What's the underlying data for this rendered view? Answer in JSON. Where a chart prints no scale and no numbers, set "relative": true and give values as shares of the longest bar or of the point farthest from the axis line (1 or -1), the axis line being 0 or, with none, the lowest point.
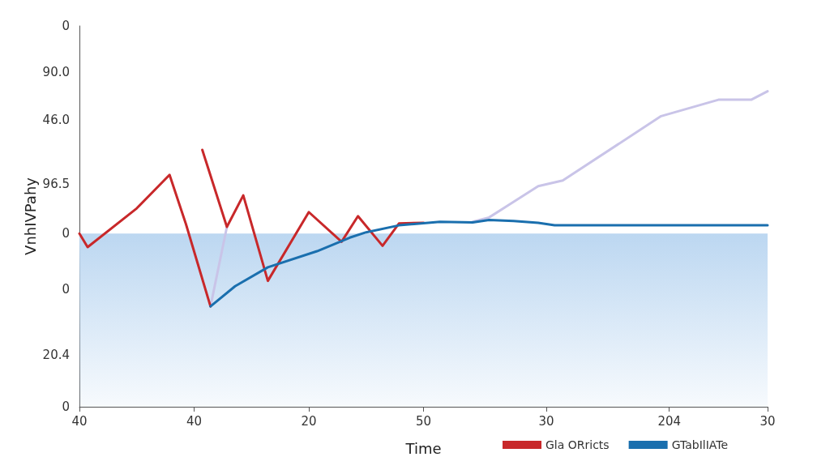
{
  "chart_data": {
    "type": "line",
    "relative": true,
    "xlabel": "Time",
    "ylabel": "VnhIVPahy",
    "annotations": [
      "0",
      "90.0",
      "46.0",
      "96.5",
      "0",
      "0",
      "20.4",
      "0"
    ],
    "categories": [
      "40",
      null,
      null,
      null,
      null,
      null,
      null,
      null,
      null,
      null,
      null,
      null,
      null,
      null,
      "40",
      null,
      null,
      null,
      null,
      null,
      null,
      null,
      null,
      null,
      null,
      null,
      null,
      null,
      "20",
      null,
      null,
      null,
      null,
      null,
      null,
      null,
      null,
      null,
      null,
      null,
      null,
      null,
      "50",
      null,
      null,
      null,
      null,
      null,
      null,
      null,
      null,
      null,
      null,
      null,
      null,
      null,
      null,
      "30",
      null,
      null,
      null,
      null,
      null,
      null,
      null,
      null,
      null,
      null,
      null,
      null,
      null,
      null,
      "204",
      null,
      null,
      null,
      null,
      null,
      null,
      null,
      null,
      null,
      null,
      null,
      "30"
    ],
    "legend": "bottom",
    "marker": "none",
    "line_style": "solid",
    "bands": [
      {
        "axis": "y",
        "from": 0,
        "to": 0.549,
        "color": "#bcd7f1"
      }
    ],
    "series": [
      {
        "color": "#c9c4e8",
        "values": [
          null,
          null,
          null,
          null,
          null,
          null,
          null,
          null,
          null,
          null,
          null,
          null,
          null,
          null,
          null,
          null,
          0.318,
          null,
          0.57,
          null,
          null,
          null,
          null,
          null,
          null,
          null,
          null,
          null,
          null,
          null,
          null,
          null,
          null,
          null,
          null,
          null,
          null,
          null,
          null,
          null,
          null,
          null,
          null,
          null,
          null,
          null,
          null,
          null,
          null,
          null,
          null,
          null,
          null,
          null,
          null,
          null,
          null,
          null,
          null,
          null,
          null,
          null,
          null,
          null,
          null,
          null,
          null,
          null,
          null,
          null,
          null,
          null,
          null,
          null,
          null,
          null,
          null,
          null,
          null,
          null,
          null,
          null,
          null,
          null,
          null
        ]
      },
      {
        "color": "#c9c4e8",
        "values": [
          null,
          null,
          null,
          null,
          null,
          null,
          null,
          null,
          null,
          null,
          null,
          null,
          null,
          null,
          null,
          null,
          null,
          null,
          null,
          null,
          null,
          null,
          null,
          null,
          null,
          null,
          null,
          null,
          null,
          null,
          null,
          null,
          null,
          null,
          null,
          null,
          null,
          null,
          null,
          null,
          null,
          null,
          null,
          null,
          null,
          null,
          null,
          null,
          0.586,
          null,
          0.6,
          null,
          null,
          null,
          null,
          null,
          0.699,
          null,
          null,
          0.717,
          null,
          null,
          null,
          null,
          null,
          null,
          null,
          null,
          null,
          null,
          null,
          0.921,
          null,
          null,
          null,
          null,
          null,
          null,
          0.973,
          null,
          null,
          null,
          0.973,
          null,
          1
        ]
      },
      {
        "name": "Gla ORricts",
        "color": "#c8282a",
        "values": [
          0.549,
          0.506,
          null,
          null,
          null,
          null,
          null,
          0.629,
          null,
          null,
          null,
          0.735,
          null,
          0.579,
          null,
          null,
          0.318,
          null,
          null,
          null,
          null,
          null,
          null,
          null,
          null,
          null,
          null,
          null,
          null,
          null,
          null,
          null,
          null,
          null,
          null,
          null,
          null,
          null,
          null,
          null,
          null,
          null,
          null,
          null,
          null,
          null,
          null,
          null,
          null,
          null,
          null,
          null,
          null,
          null,
          null,
          null,
          null,
          null,
          null,
          null,
          null,
          null,
          null,
          null,
          null,
          null,
          null,
          null,
          null,
          null,
          null,
          null,
          null,
          null,
          null,
          null,
          null,
          null,
          null,
          null,
          null,
          null,
          null,
          null,
          null
        ]
      },
      {
        "color": "#c8282a",
        "values": [
          null,
          null,
          null,
          null,
          null,
          null,
          null,
          null,
          null,
          null,
          null,
          null,
          null,
          null,
          null,
          0.814,
          null,
          null,
          0.57,
          null,
          0.67,
          null,
          null,
          0.399,
          null,
          null,
          null,
          null,
          0.617,
          null,
          null,
          null,
          0.523,
          null,
          0.604,
          null,
          null,
          0.51,
          null,
          0.581,
          null,
          null,
          0.583,
          null,
          null,
          null,
          null,
          null,
          null,
          null,
          null,
          null,
          null,
          null,
          null,
          null,
          null,
          null,
          null,
          null,
          null,
          null,
          null,
          null,
          null,
          null,
          null,
          null,
          null,
          null,
          null,
          null,
          null,
          null,
          null,
          null,
          null,
          null,
          null,
          null,
          null,
          null,
          null,
          null,
          null
        ]
      },
      {
        "name": "GTabIlIATe",
        "color": "#1a6fae",
        "values": [
          null,
          null,
          null,
          null,
          null,
          null,
          null,
          null,
          null,
          null,
          null,
          null,
          null,
          null,
          null,
          null,
          0.318,
          null,
          null,
          0.382,
          null,
          null,
          null,
          0.442,
          null,
          null,
          null,
          null,
          null,
          0.493,
          null,
          null,
          null,
          0.536,
          null,
          0.553,
          null,
          null,
          null,
          0.575,
          null,
          null,
          null,
          null,
          0.586,
          null,
          null,
          null,
          0.584,
          null,
          0.592,
          null,
          null,
          0.589,
          null,
          null,
          0.583,
          null,
          0.575,
          null,
          null,
          null,
          null,
          null,
          null,
          null,
          null,
          null,
          null,
          null,
          null,
          null,
          null,
          null,
          null,
          null,
          null,
          null,
          null,
          null,
          null,
          null,
          null,
          null,
          0.575
        ]
      }
    ]
  }
}
